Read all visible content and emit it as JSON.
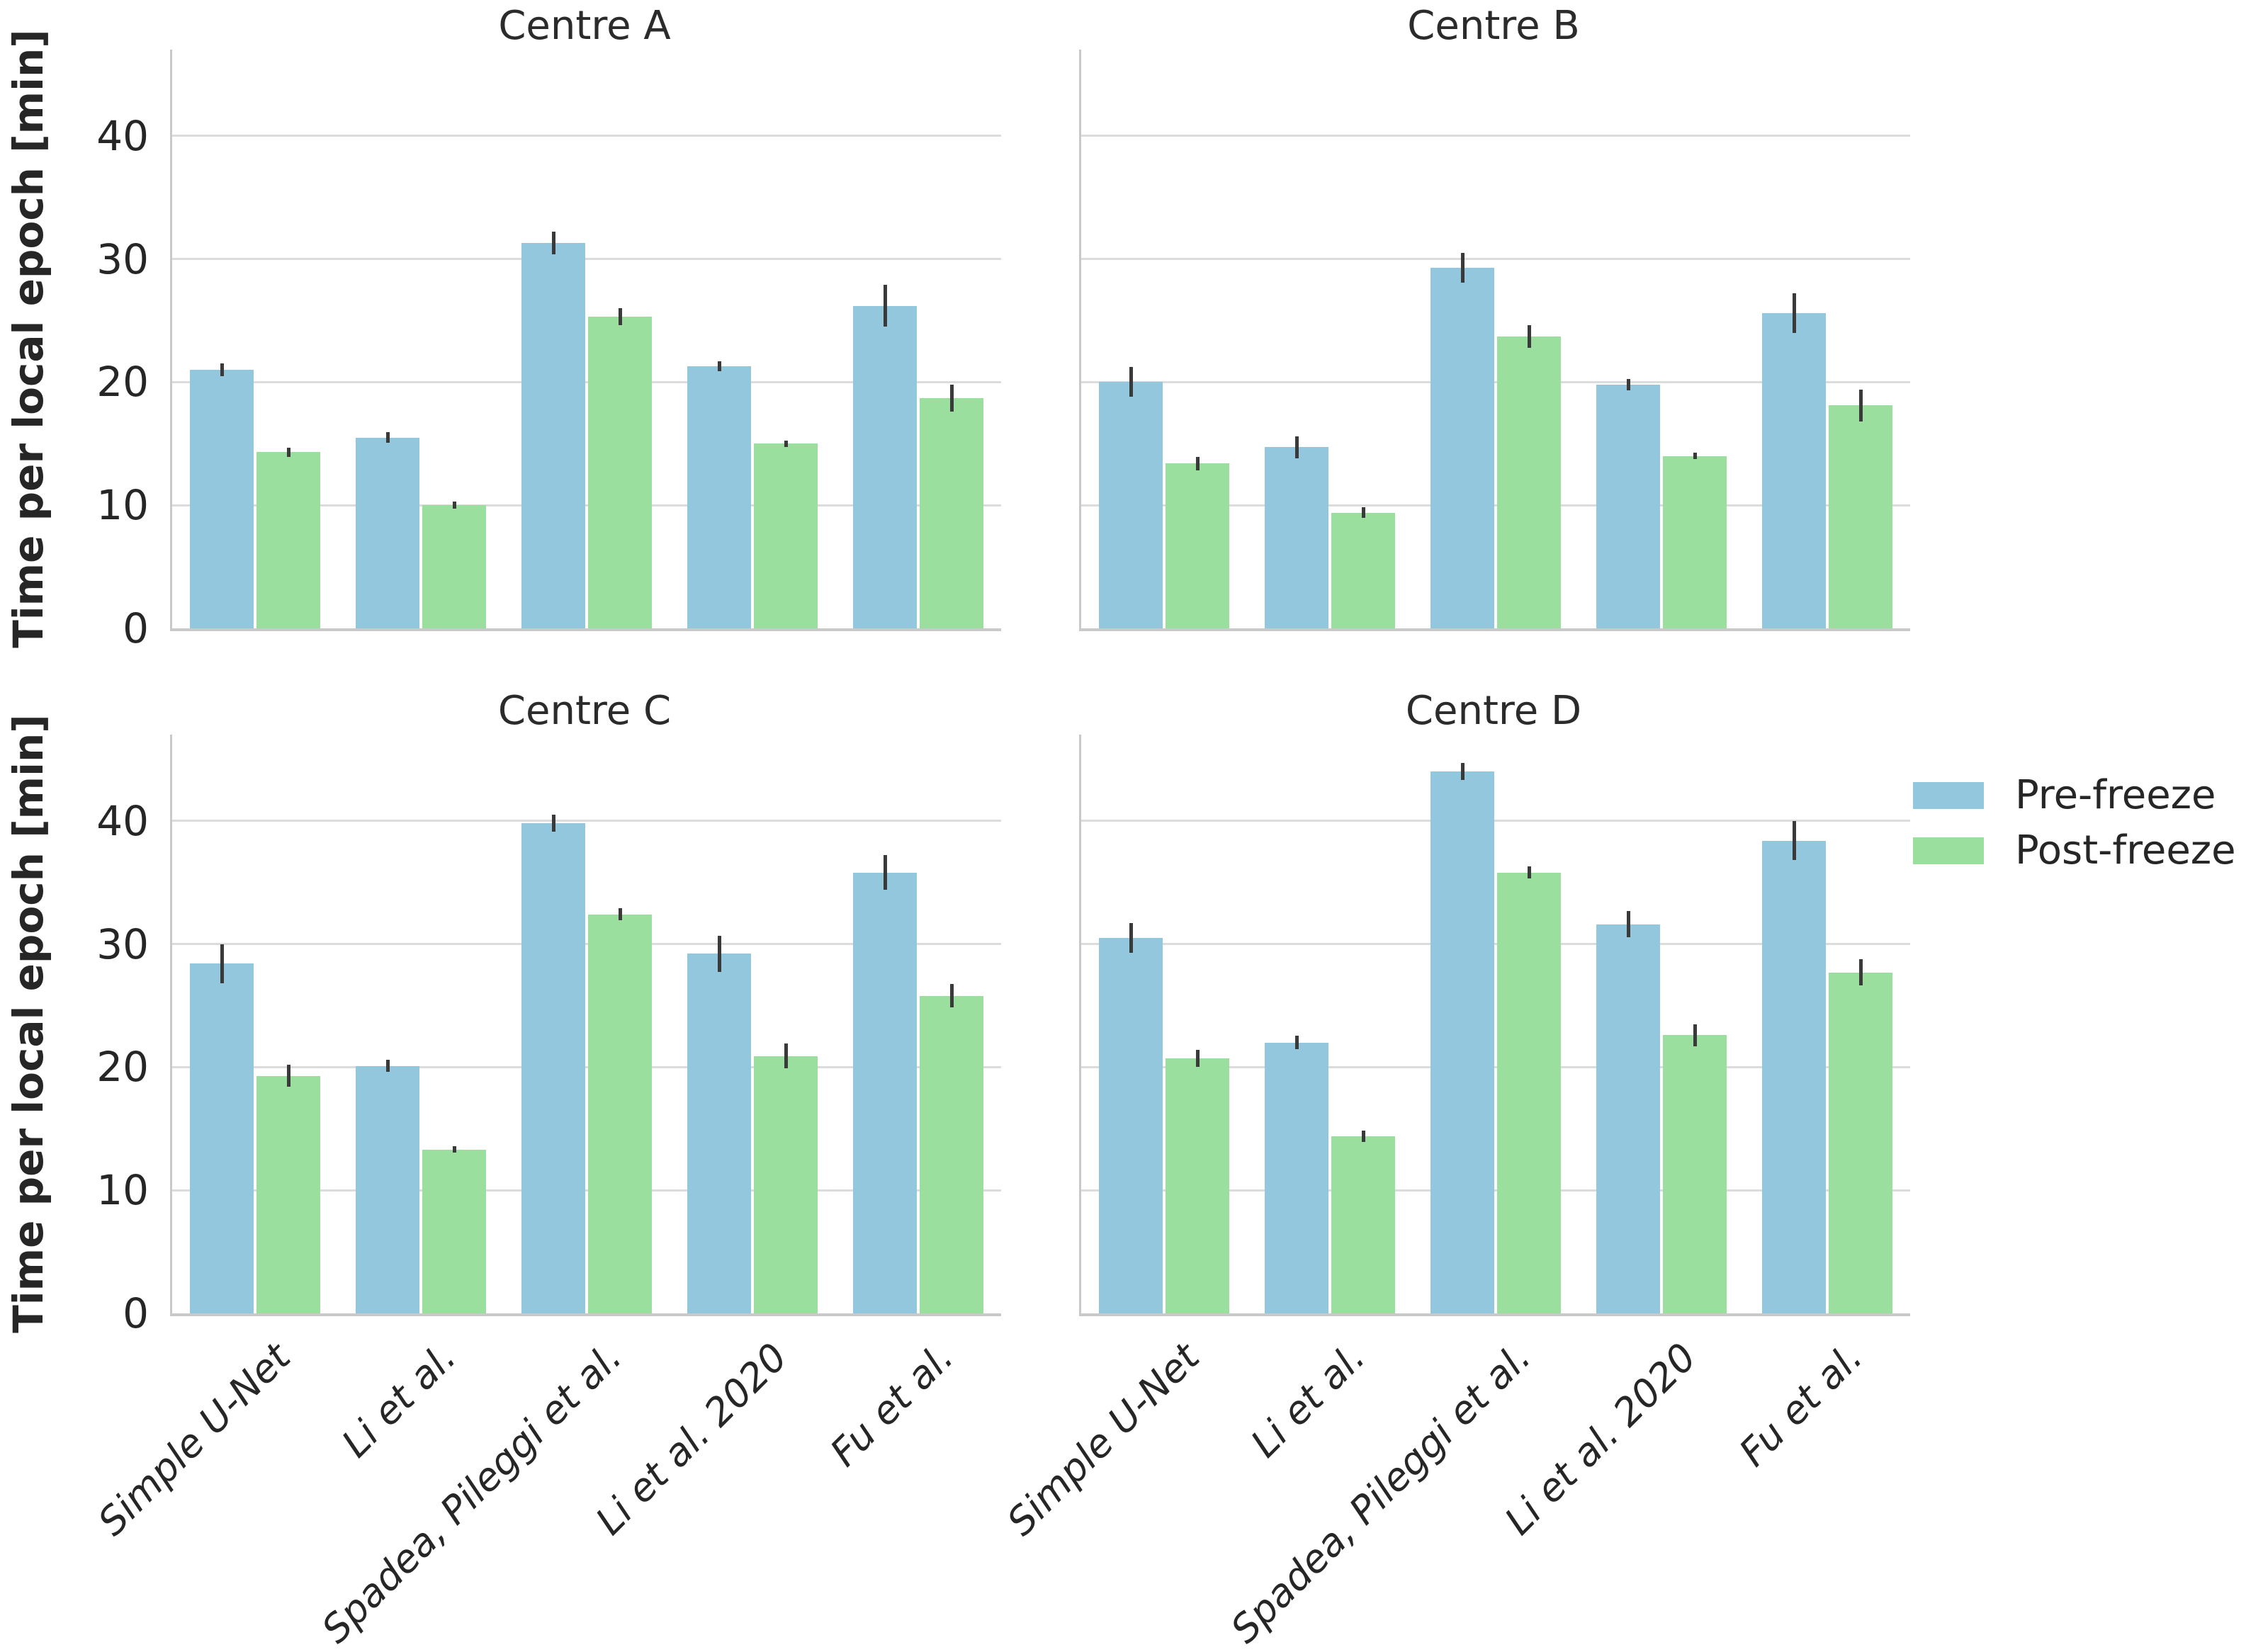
{
  "ylabel": "Time per local epoch [min]",
  "legend": {
    "position": "outside-right-of-centre-d",
    "items": [
      {
        "label": "Pre-freeze",
        "color": "#92c7de"
      },
      {
        "label": "Post-freeze",
        "color": "#9bdf9e"
      }
    ]
  },
  "chart_data": [
    {
      "type": "bar",
      "title": "Centre A",
      "categories": [
        "Simple U-Net",
        "Li et al.",
        "Spadea, Pileggi et al.",
        "Li et al. 2020",
        "Fu et al."
      ],
      "series": [
        {
          "name": "Pre-freeze",
          "color": "#92c7de",
          "values": [
            21.0,
            15.5,
            31.3,
            21.3,
            26.2
          ],
          "errors": [
            0.5,
            0.45,
            0.9,
            0.4,
            1.7
          ]
        },
        {
          "name": "Post-freeze",
          "color": "#9bdf9e",
          "values": [
            14.3,
            10.0,
            25.3,
            15.0,
            18.7
          ],
          "errors": [
            0.35,
            0.3,
            0.7,
            0.25,
            1.1
          ]
        }
      ],
      "ylabel": "Time per local epoch [min]",
      "ylim": [
        0,
        47
      ],
      "yticks": [
        0,
        10,
        20,
        30,
        40
      ],
      "grid": true,
      "x_tick_labels_shown": false
    },
    {
      "type": "bar",
      "title": "Centre B",
      "categories": [
        "Simple U-Net",
        "Li et al.",
        "Spadea, Pileggi et al.",
        "Li et al. 2020",
        "Fu et al."
      ],
      "series": [
        {
          "name": "Pre-freeze",
          "color": "#92c7de",
          "values": [
            20.0,
            14.7,
            29.3,
            19.8,
            25.6
          ],
          "errors": [
            1.2,
            0.9,
            1.2,
            0.45,
            1.6
          ]
        },
        {
          "name": "Post-freeze",
          "color": "#9bdf9e",
          "values": [
            13.4,
            9.4,
            23.7,
            14.0,
            18.1
          ],
          "errors": [
            0.55,
            0.45,
            0.9,
            0.25,
            1.3
          ]
        }
      ],
      "ylabel": "Time per local epoch [min]",
      "ylim": [
        0,
        47
      ],
      "yticks": [
        0,
        10,
        20,
        30,
        40
      ],
      "grid": true,
      "x_tick_labels_shown": false
    },
    {
      "type": "bar",
      "title": "Centre C",
      "categories": [
        "Simple U-Net",
        "Li et al.",
        "Spadea, Pileggi et al.",
        "Li et al. 2020",
        "Fu et al."
      ],
      "series": [
        {
          "name": "Pre-freeze",
          "color": "#92c7de",
          "values": [
            28.4,
            20.1,
            39.8,
            29.2,
            35.8
          ],
          "errors": [
            1.6,
            0.5,
            0.7,
            1.45,
            1.4
          ]
        },
        {
          "name": "Post-freeze",
          "color": "#9bdf9e",
          "values": [
            19.3,
            13.3,
            32.4,
            20.9,
            25.8
          ],
          "errors": [
            0.9,
            0.25,
            0.5,
            1.0,
            0.95
          ]
        }
      ],
      "ylabel": "Time per local epoch [min]",
      "ylim": [
        0,
        47
      ],
      "yticks": [
        0,
        10,
        20,
        30,
        40
      ],
      "grid": true,
      "x_tick_labels_shown": true
    },
    {
      "type": "bar",
      "title": "Centre D",
      "categories": [
        "Simple U-Net",
        "Li et al.",
        "Spadea, Pileggi et al.",
        "Li et al. 2020",
        "Fu et al."
      ],
      "series": [
        {
          "name": "Pre-freeze",
          "color": "#92c7de",
          "values": [
            30.5,
            22.0,
            44.0,
            31.6,
            38.4
          ],
          "errors": [
            1.2,
            0.55,
            0.7,
            1.05,
            1.6
          ]
        },
        {
          "name": "Post-freeze",
          "color": "#9bdf9e",
          "values": [
            20.7,
            14.4,
            35.8,
            22.6,
            27.7
          ],
          "errors": [
            0.7,
            0.45,
            0.5,
            0.9,
            1.05
          ]
        }
      ],
      "ylabel": "Time per local epoch [min]",
      "ylim": [
        0,
        47
      ],
      "yticks": [
        0,
        10,
        20,
        30,
        40
      ],
      "grid": true,
      "x_tick_labels_shown": true
    }
  ]
}
